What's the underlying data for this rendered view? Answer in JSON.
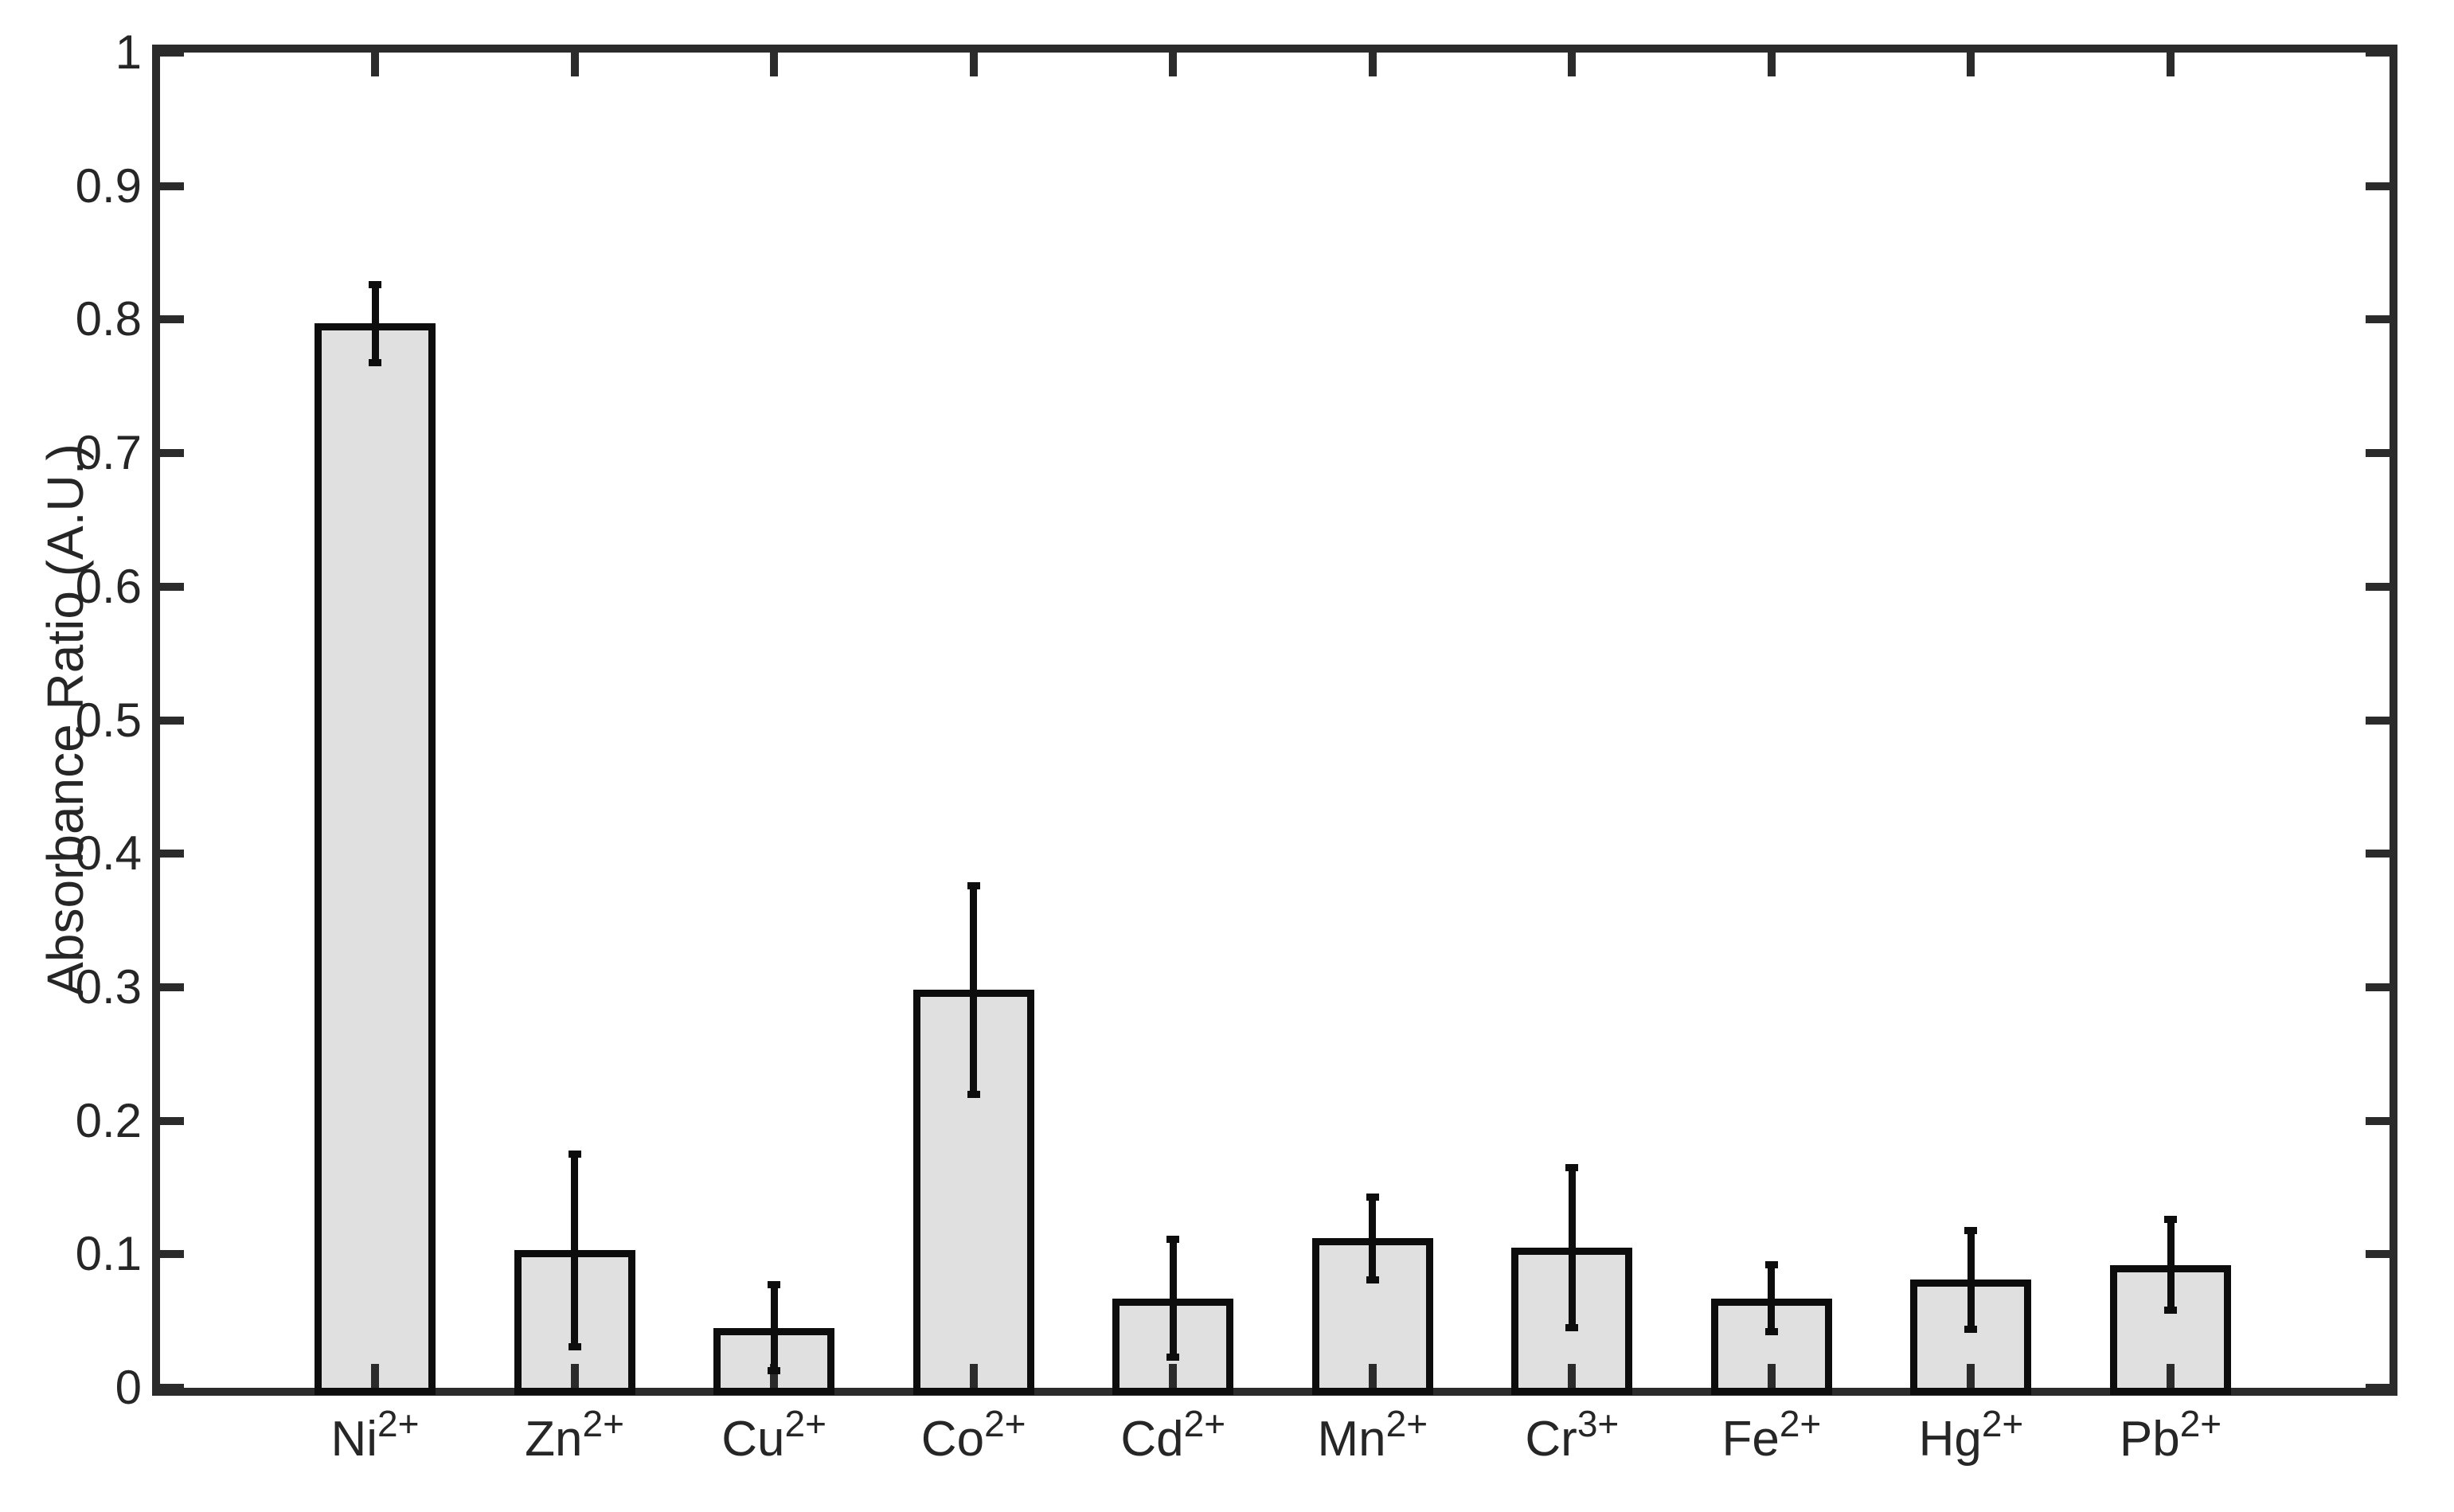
{
  "figure": {
    "background": "#ffffff"
  },
  "chart_data": {
    "type": "bar",
    "title": "",
    "xlabel": "",
    "ylabel": "Absorbance Ratio (A.U.)",
    "categories": [
      "Ni2+",
      "Zn2+",
      "Cu2+",
      "Co2+",
      "Cd2+",
      "Mn2+",
      "Cr3+",
      "Fe2+",
      "Hg2+",
      "Pb2+"
    ],
    "category_parts": [
      {
        "base": "Ni",
        "superscript": "2+"
      },
      {
        "base": "Zn",
        "superscript": "2+"
      },
      {
        "base": "Cu",
        "superscript": "2+"
      },
      {
        "base": "Co",
        "superscript": "2+"
      },
      {
        "base": "Cd",
        "superscript": "2+"
      },
      {
        "base": "Mn",
        "superscript": "2+"
      },
      {
        "base": "Cr",
        "superscript": "3+"
      },
      {
        "base": "Fe",
        "superscript": "2+"
      },
      {
        "base": "Hg",
        "superscript": "2+"
      },
      {
        "base": "Pb",
        "superscript": "2+"
      }
    ],
    "values": [
      0.797,
      0.103,
      0.045,
      0.298,
      0.067,
      0.112,
      0.105,
      0.067,
      0.081,
      0.092
    ],
    "errors": [
      0.029,
      0.072,
      0.032,
      0.078,
      0.044,
      0.031,
      0.06,
      0.025,
      0.037,
      0.034
    ],
    "error_bars": true,
    "ylim": [
      0,
      1
    ],
    "y_ticks": [
      "0",
      "0.1",
      "0.2",
      "0.3",
      "0.4",
      "0.5",
      "0.6",
      "0.7",
      "0.8",
      "0.9",
      "1"
    ],
    "y_tick_values": [
      0,
      0.1,
      0.2,
      0.3,
      0.4,
      0.5,
      0.6,
      0.7,
      0.8,
      0.9,
      1
    ],
    "grid": "off",
    "legend": "none",
    "style": {
      "bar_fill": "#e0e0e0",
      "bar_edge": "#0d0d0d",
      "error_color": "#0d0d0d",
      "axis_color": "#2b2b2b",
      "text_color": "#262626"
    }
  }
}
